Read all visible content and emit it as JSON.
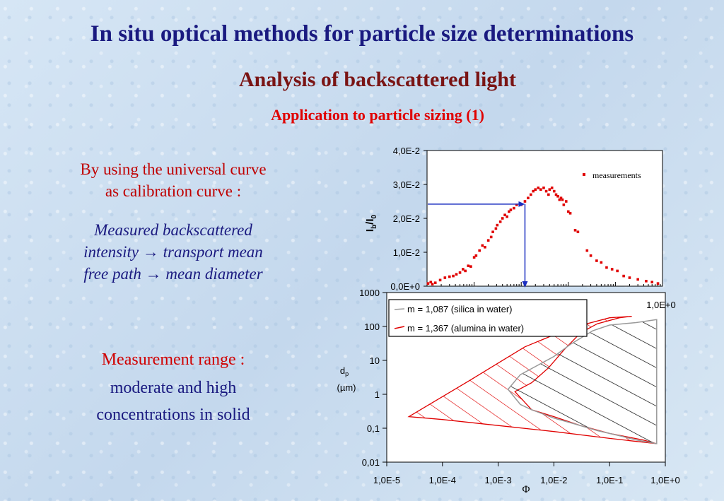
{
  "slide": {
    "title": "In situ optical methods for particle size determinations",
    "subtitle": "Analysis of backscattered light",
    "section": "Application to particle sizing (1)",
    "intro_line1": "By using the universal curve",
    "intro_line2": "as calibration curve :",
    "method_line1": "Measured backscattered",
    "method_line2": "intensity",
    "method_line2b": "transport mean",
    "method_line3": "free path",
    "method_line3b": "mean diameter",
    "arrow_symbol": "→",
    "range_title": "Measurement range :",
    "range_line1": "moderate and high",
    "range_line2": "concentrations in solid",
    "colors": {
      "title": "#1a1a80",
      "subtitle": "#7a1414",
      "accent": "#e00000"
    }
  },
  "chart_data": [
    {
      "type": "scatter",
      "title": "",
      "xscale": "log",
      "xlim": [
        1e-05,
        1
      ],
      "ylim": [
        0,
        0.04
      ],
      "ylabel_main": "I",
      "ylabel_sub1": "b",
      "ylabel_mid": "/I",
      "ylabel_sub2": "0",
      "yticks": [
        "0,0E+0",
        "1,0E-2",
        "2,0E-2",
        "3,0E-2",
        "4,0E-2"
      ],
      "ytick_values": [
        0,
        0.01,
        0.02,
        0.03,
        0.04
      ],
      "xtick_label_right": "1,0E+0",
      "legend": "measurements",
      "series": [
        {
          "name": "measurements",
          "color": "#e00000",
          "points": [
            [
              1.05e-05,
              0.0008
            ],
            [
              1.2e-05,
              0.0012
            ],
            [
              1.3e-05,
              0.0006
            ],
            [
              1.5e-05,
              0.001
            ],
            [
              1.9e-05,
              0.0018
            ],
            [
              2.4e-05,
              0.0025
            ],
            [
              3e-05,
              0.0028
            ],
            [
              3.6e-05,
              0.003
            ],
            [
              4.2e-05,
              0.0035
            ],
            [
              5e-05,
              0.004
            ],
            [
              5.8e-05,
              0.005
            ],
            [
              6.5e-05,
              0.0045
            ],
            [
              7.5e-05,
              0.006
            ],
            [
              8.5e-05,
              0.0058
            ],
            [
              0.0001,
              0.0085
            ],
            [
              0.00011,
              0.009
            ],
            [
              0.00013,
              0.0105
            ],
            [
              0.00015,
              0.012
            ],
            [
              0.00017,
              0.0115
            ],
            [
              0.0002,
              0.0135
            ],
            [
              0.00023,
              0.0145
            ],
            [
              0.00025,
              0.016
            ],
            [
              0.00029,
              0.017
            ],
            [
              0.00031,
              0.018
            ],
            [
              0.00036,
              0.019
            ],
            [
              0.0004,
              0.02
            ],
            [
              0.00045,
              0.021
            ],
            [
              0.0005,
              0.0205
            ],
            [
              0.00055,
              0.022
            ],
            [
              0.0006,
              0.0225
            ],
            [
              0.0007,
              0.023
            ],
            [
              0.0008,
              0.024
            ],
            [
              0.001,
              0.024
            ],
            [
              0.0012,
              0.025
            ],
            [
              0.0014,
              0.026
            ],
            [
              0.0016,
              0.027
            ],
            [
              0.0018,
              0.028
            ],
            [
              0.002,
              0.0285
            ],
            [
              0.0023,
              0.029
            ],
            [
              0.0026,
              0.0285
            ],
            [
              0.003,
              0.029
            ],
            [
              0.0034,
              0.028
            ],
            [
              0.0038,
              0.027
            ],
            [
              0.004,
              0.0285
            ],
            [
              0.0045,
              0.029
            ],
            [
              0.005,
              0.028
            ],
            [
              0.0055,
              0.027
            ],
            [
              0.006,
              0.0265
            ],
            [
              0.0065,
              0.0255
            ],
            [
              0.007,
              0.026
            ],
            [
              0.0075,
              0.0255
            ],
            [
              0.008,
              0.024
            ],
            [
              0.009,
              0.025
            ],
            [
              0.01,
              0.022
            ],
            [
              0.011,
              0.0215
            ],
            [
              0.014,
              0.0165
            ],
            [
              0.016,
              0.016
            ],
            [
              0.025,
              0.0105
            ],
            [
              0.03,
              0.009
            ],
            [
              0.04,
              0.0075
            ],
            [
              0.05,
              0.007
            ],
            [
              0.065,
              0.0055
            ],
            [
              0.085,
              0.005
            ],
            [
              0.11,
              0.0045
            ],
            [
              0.15,
              0.003
            ],
            [
              0.2,
              0.0025
            ],
            [
              0.3,
              0.002
            ],
            [
              0.45,
              0.0015
            ],
            [
              0.6,
              0.0012
            ],
            [
              0.8,
              0.0008
            ]
          ]
        }
      ],
      "calibration_arrow": {
        "x": 0.0012,
        "y": 0.0242
      }
    },
    {
      "type": "area",
      "title": "",
      "xscale": "log",
      "yscale": "log",
      "xlim": [
        1e-05,
        1
      ],
      "ylim": [
        0.01,
        1000
      ],
      "xlabel": "Φ",
      "ylabel_main": "d",
      "ylabel_sub": "p",
      "ylabel_unit": "(µm)",
      "xticks": [
        "1,0E-5",
        "1,0E-4",
        "1,0E-3",
        "1,0E-2",
        "1,0E-1",
        "1,0E+0"
      ],
      "xtick_values": [
        1e-05,
        0.0001,
        0.001,
        0.01,
        0.1,
        1
      ],
      "yticks": [
        "0,01",
        "0,1",
        "1",
        "10",
        "100",
        "1000"
      ],
      "ytick_values": [
        0.01,
        0.1,
        1,
        10,
        100,
        1000
      ],
      "series": [
        {
          "name": "m = 1,087 (silica in water)",
          "color": "#999999",
          "outline": [
            [
              0.0015,
              1.4
            ],
            [
              0.0025,
              3.8
            ],
            [
              0.005,
              7
            ],
            [
              0.01,
              13
            ],
            [
              0.02,
              30
            ],
            [
              0.05,
              75
            ],
            [
              0.1,
              110
            ],
            [
              0.3,
              130
            ],
            [
              0.7,
              160
            ],
            [
              0.7,
              0.035
            ],
            [
              0.3,
              0.045
            ],
            [
              0.15,
              0.06
            ],
            [
              0.06,
              0.085
            ],
            [
              0.025,
              0.13
            ],
            [
              0.01,
              0.2
            ],
            [
              0.004,
              0.35
            ],
            [
              0.0025,
              0.5
            ],
            [
              0.0015,
              1.4
            ]
          ]
        },
        {
          "name": "m = 1,367 (alumina in water)",
          "color": "#e00000",
          "outline": [
            [
              2.5e-05,
              0.22
            ],
            [
              0.0003,
              2.5
            ],
            [
              0.003,
              25
            ],
            [
              0.02,
              90
            ],
            [
              0.1,
              180
            ],
            [
              0.25,
              200
            ],
            [
              0.15,
              180
            ],
            [
              0.06,
              120
            ],
            [
              0.03,
              65
            ],
            [
              0.015,
              20
            ],
            [
              0.008,
              6
            ],
            [
              0.004,
              2.2
            ],
            [
              0.002,
              1.2
            ],
            [
              0.004,
              0.35
            ],
            [
              0.01,
              0.22
            ],
            [
              0.03,
              0.12
            ],
            [
              0.1,
              0.07
            ],
            [
              0.4,
              0.045
            ],
            [
              0.7,
              0.035
            ],
            [
              0.1,
              0.05
            ],
            [
              0.01,
              0.08
            ],
            [
              0.001,
              0.12
            ],
            [
              0.0001,
              0.18
            ],
            [
              2.5e-05,
              0.22
            ]
          ]
        }
      ]
    }
  ]
}
